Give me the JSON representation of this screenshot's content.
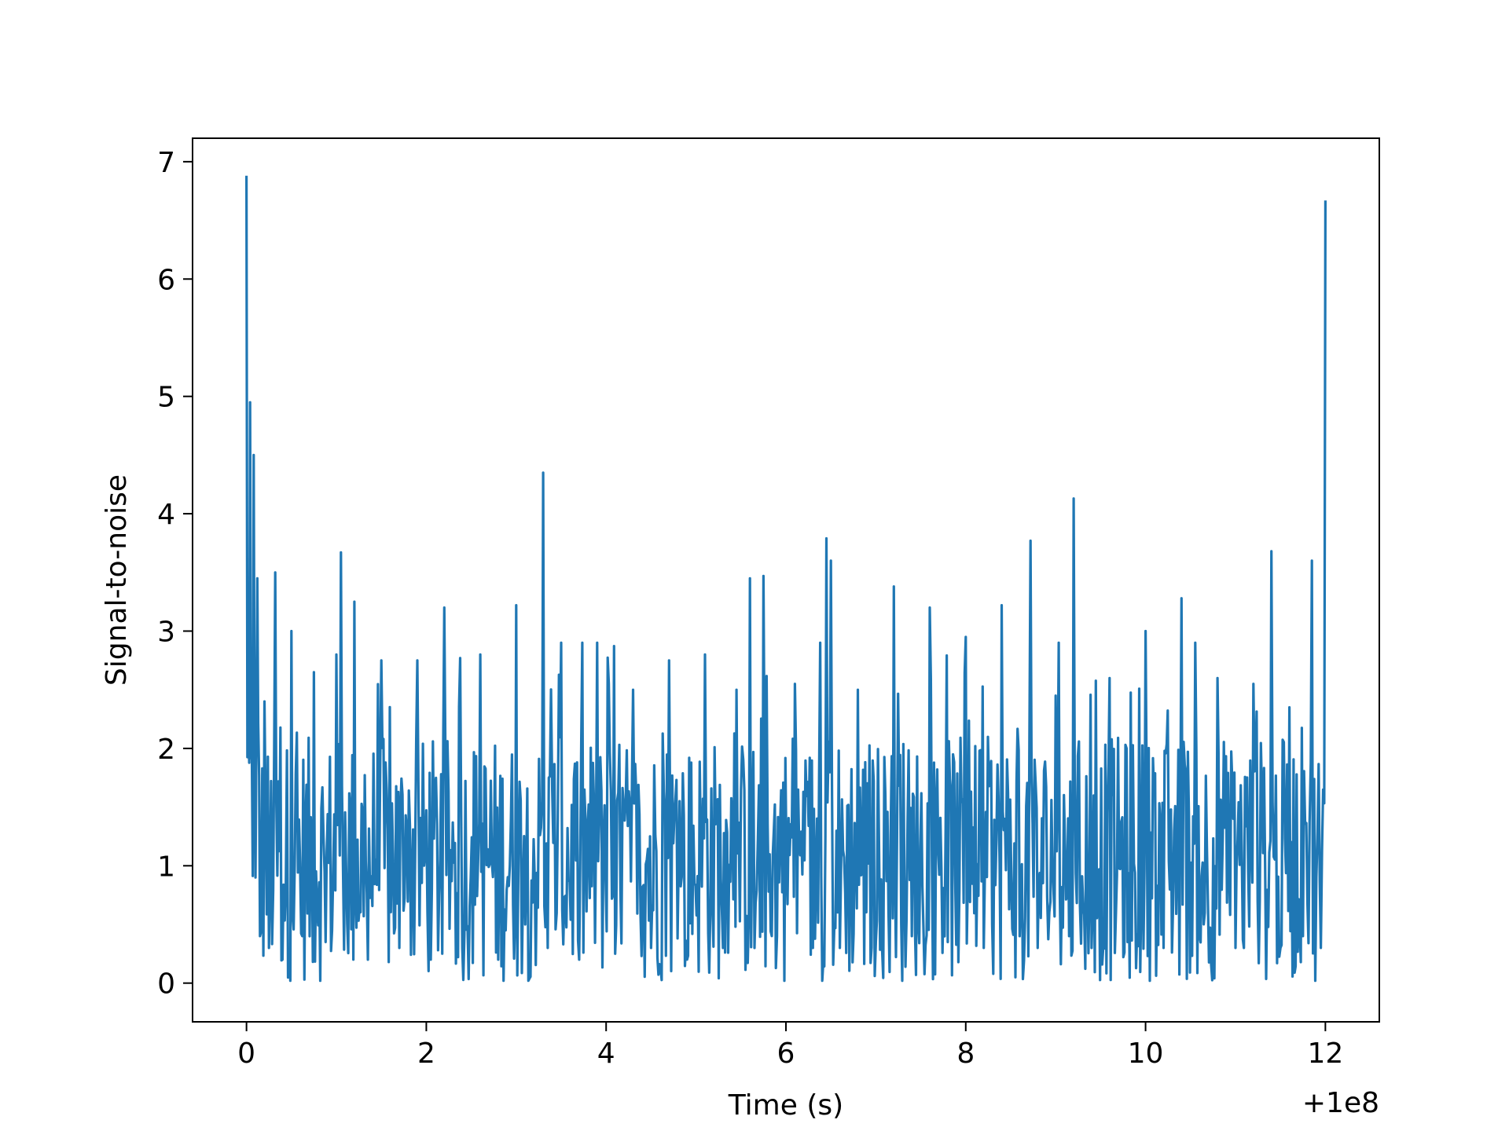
{
  "chart_data": {
    "type": "line",
    "title": "",
    "xlabel": "Time (s)",
    "ylabel": "Signal-to-noise",
    "x_offset_label": "+1e8",
    "xlim": [
      -0.6,
      12.6
    ],
    "ylim": [
      -0.33,
      7.2
    ],
    "x_ticks": [
      0,
      2,
      4,
      6,
      8,
      10,
      12
    ],
    "x_tick_labels": [
      "0",
      "2",
      "4",
      "6",
      "8",
      "10",
      "12"
    ],
    "y_ticks": [
      0,
      1,
      2,
      3,
      4,
      5,
      6,
      7
    ],
    "y_tick_labels": [
      "0",
      "1",
      "2",
      "3",
      "4",
      "5",
      "6",
      "7"
    ],
    "grid": false,
    "legend": "none",
    "series": [
      {
        "color": "#1f77b4",
        "x": [
          0.0,
          0.02,
          0.04,
          0.06,
          0.08,
          0.1,
          0.12,
          0.15,
          0.2,
          0.25,
          0.32,
          0.4,
          0.5,
          0.62,
          0.75,
          0.88,
          1.0,
          1.05,
          1.12,
          1.2,
          1.35,
          1.5,
          1.7,
          1.9,
          2.05,
          2.2,
          2.4,
          2.6,
          2.8,
          3.0,
          3.1,
          3.3,
          3.35,
          3.5,
          3.7,
          3.9,
          4.1,
          4.3,
          4.5,
          4.7,
          4.9,
          5.1,
          5.3,
          5.45,
          5.6,
          5.65,
          5.75,
          5.9,
          6.1,
          6.3,
          6.45,
          6.5,
          6.6,
          6.8,
          7.0,
          7.2,
          7.4,
          7.6,
          7.8,
          8.0,
          8.2,
          8.4,
          8.6,
          8.72,
          8.8,
          9.0,
          9.15,
          9.2,
          9.4,
          9.6,
          9.8,
          10.0,
          10.2,
          10.4,
          10.6,
          10.8,
          11.0,
          11.2,
          11.4,
          11.5,
          11.6,
          11.75,
          11.85,
          11.95,
          12.0
        ],
        "y": [
          6.88,
          2.3,
          4.95,
          1.9,
          4.5,
          0.9,
          3.45,
          0.4,
          2.4,
          0.3,
          3.5,
          0.2,
          3.0,
          0.4,
          2.65,
          0.35,
          2.8,
          3.67,
          0.5,
          3.25,
          0.2,
          2.75,
          0.3,
          2.75,
          0.2,
          3.2,
          0.3,
          2.8,
          0.2,
          3.22,
          0.5,
          4.35,
          0.3,
          2.9,
          0.2,
          2.9,
          0.25,
          2.5,
          0.3,
          2.75,
          0.2,
          2.8,
          0.3,
          2.5,
          3.45,
          0.3,
          3.47,
          0.4,
          2.55,
          0.3,
          3.79,
          3.6,
          0.3,
          2.5,
          0.35,
          3.38,
          0.4,
          3.2,
          0.35,
          2.95,
          0.3,
          3.22,
          0.4,
          3.77,
          0.3,
          2.45,
          0.4,
          4.13,
          0.3,
          2.6,
          0.35,
          3.0,
          0.3,
          3.28,
          0.4,
          2.6,
          0.3,
          2.55,
          3.68,
          0.3,
          2.35,
          0.4,
          3.6,
          0.3,
          6.67
        ]
      }
    ]
  }
}
